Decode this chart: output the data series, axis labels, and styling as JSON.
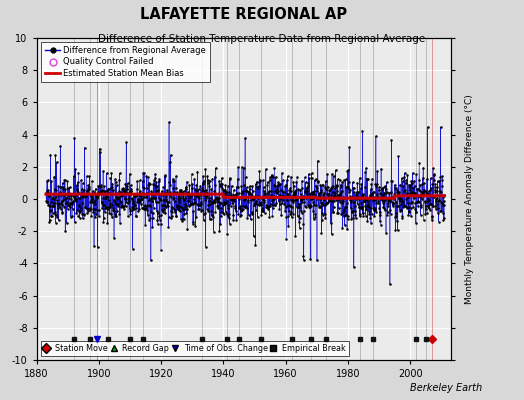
{
  "title": "LAFAYETTE REGIONAL AP",
  "subtitle": "Difference of Station Temperature Data from Regional Average",
  "ylabel_right": "Monthly Temperature Anomaly Difference (°C)",
  "xlim": [
    1880,
    2013
  ],
  "ylim": [
    -10,
    10
  ],
  "yticks": [
    -10,
    -8,
    -6,
    -4,
    -2,
    0,
    2,
    4,
    6,
    8,
    10
  ],
  "xticks": [
    1880,
    1900,
    1920,
    1940,
    1960,
    1980,
    2000
  ],
  "bg_color": "#d8d8d8",
  "plot_bg_color": "#ebebeb",
  "grid_color": "#ffffff",
  "line_color": "#0000cc",
  "dot_color": "#000000",
  "bias_line_color": "#cc0000",
  "station_move_color": "#cc0000",
  "record_gap_color": "#00aa00",
  "tobs_change_color": "#0000cc",
  "empirical_break_color": "#111111",
  "berkeley_earth_text": "Berkeley Earth",
  "station_moves": [
    2007.0
  ],
  "record_gaps": [],
  "tobs_changes": [
    1899.5
  ],
  "empirical_breaks": [
    1892,
    1897,
    1903,
    1910,
    1914,
    1933,
    1941,
    1945,
    1952,
    1962,
    1968,
    1973,
    1984,
    1988,
    2002,
    2005
  ],
  "seed": 42,
  "start_year": 1883,
  "end_year": 2011
}
